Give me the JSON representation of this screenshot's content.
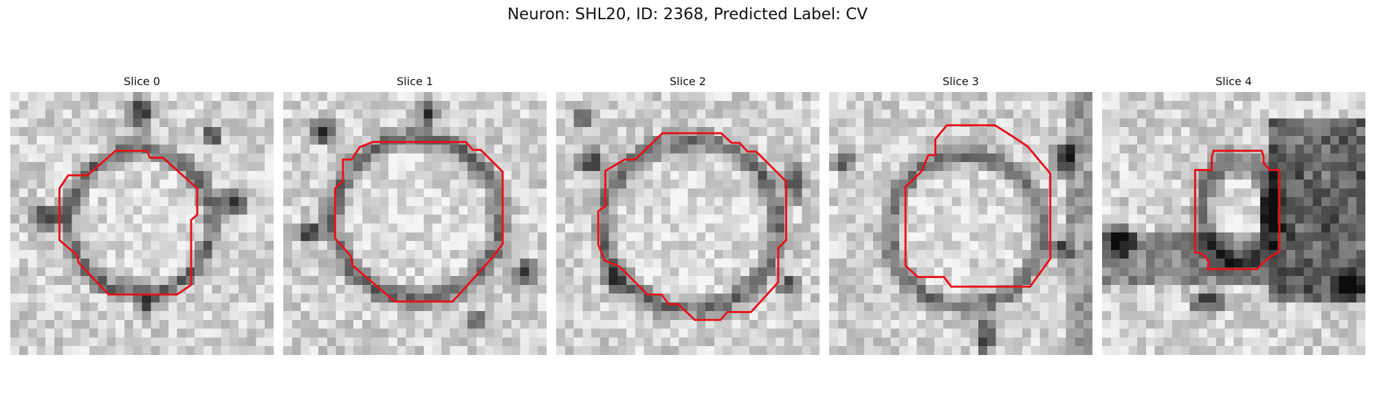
{
  "figure": {
    "title": "Neuron: SHL20, ID: 2368, Predicted Label: CV"
  },
  "panels": [
    {
      "title": "Slice 0",
      "variant": 0
    },
    {
      "title": "Slice 1",
      "variant": 1
    },
    {
      "title": "Slice 2",
      "variant": 2
    },
    {
      "title": "Slice 3",
      "variant": 3
    },
    {
      "title": "Slice 4",
      "variant": 4
    }
  ],
  "contour_color": "#e8101a"
}
